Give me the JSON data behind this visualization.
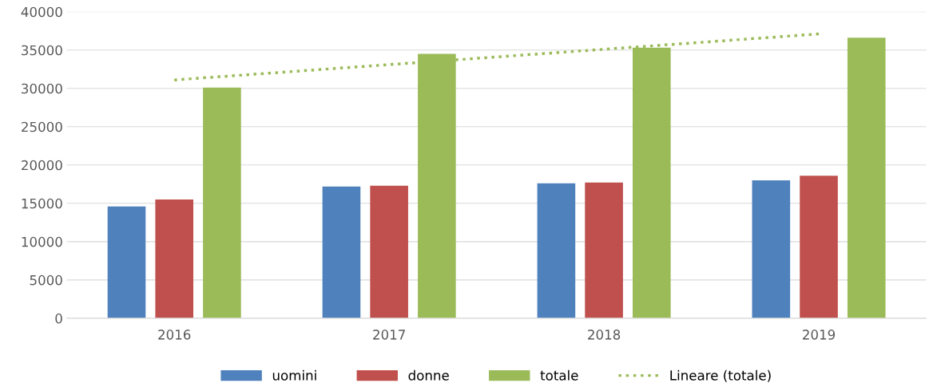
{
  "chart_data": {
    "type": "bar",
    "categories": [
      "2016",
      "2017",
      "2018",
      "2019"
    ],
    "series": [
      {
        "name": "uomini",
        "color": "#4f81bd",
        "values": [
          14600,
          17200,
          17600,
          18000
        ]
      },
      {
        "name": "donne",
        "color": "#c0504d",
        "values": [
          15500,
          17300,
          17700,
          18600
        ]
      },
      {
        "name": "totale",
        "color": "#9bbb59",
        "values": [
          30100,
          34500,
          35300,
          36600
        ]
      },
      {
        "name": "Lineare (totale)",
        "type": "line",
        "color": "#9bbb59",
        "line_style": "dotted",
        "values": [
          31100,
          33100,
          35100,
          37100
        ]
      }
    ],
    "ylim": [
      0,
      40000
    ],
    "yticks": [
      0,
      5000,
      10000,
      15000,
      20000,
      25000,
      30000,
      35000,
      40000
    ],
    "grid": "y",
    "legend": "bottom"
  }
}
